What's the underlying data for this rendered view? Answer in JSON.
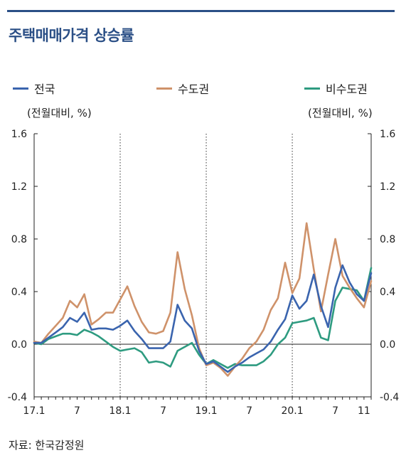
{
  "title": "주택매매가격 상승률",
  "source": "자료: 한국감정원",
  "colors": {
    "title": "#2b4f86",
    "rule": "#2b4f86"
  },
  "chart_data": {
    "type": "line",
    "unit_left": "(전월대비, %)",
    "unit_right": "(전월대비, %)",
    "ylim": [
      -0.4,
      1.6
    ],
    "yticks": [
      "1.6",
      "1.2",
      "0.8",
      "0.4",
      "0.0",
      "-0.4"
    ],
    "ytick_values": [
      1.6,
      1.2,
      0.8,
      0.4,
      0.0,
      -0.4
    ],
    "x_tick_labels": [
      {
        "label": "17.1",
        "index": 0
      },
      {
        "label": "7",
        "index": 6
      },
      {
        "label": "18.1",
        "index": 12
      },
      {
        "label": "7",
        "index": 18
      },
      {
        "label": "19.1",
        "index": 24
      },
      {
        "label": "7",
        "index": 30
      },
      {
        "label": "20.1",
        "index": 36
      },
      {
        "label": "7",
        "index": 42
      },
      {
        "label": "11",
        "index": 46
      }
    ],
    "vertical_dotted_lines_at_index": [
      12,
      24,
      36
    ],
    "series": [
      {
        "name": "전국",
        "color": "#3a64ae",
        "values": [
          0.01,
          0.01,
          0.05,
          0.09,
          0.13,
          0.2,
          0.17,
          0.24,
          0.11,
          0.12,
          0.12,
          0.11,
          0.14,
          0.18,
          0.1,
          0.04,
          -0.03,
          -0.03,
          -0.03,
          0.02,
          0.3,
          0.18,
          0.12,
          -0.05,
          -0.15,
          -0.13,
          -0.17,
          -0.21,
          -0.17,
          -0.14,
          -0.1,
          -0.07,
          -0.04,
          0.02,
          0.11,
          0.19,
          0.37,
          0.27,
          0.33,
          0.53,
          0.29,
          0.13,
          0.43,
          0.6,
          0.47,
          0.38,
          0.33,
          0.54
        ]
      },
      {
        "name": "수도권",
        "color": "#cf926a",
        "values": [
          0.02,
          0.01,
          0.08,
          0.14,
          0.2,
          0.33,
          0.28,
          0.38,
          0.15,
          0.19,
          0.24,
          0.24,
          0.34,
          0.44,
          0.29,
          0.17,
          0.09,
          0.08,
          0.1,
          0.24,
          0.7,
          0.42,
          0.22,
          -0.03,
          -0.16,
          -0.14,
          -0.18,
          -0.24,
          -0.17,
          -0.11,
          -0.03,
          0.02,
          0.11,
          0.26,
          0.35,
          0.62,
          0.39,
          0.5,
          0.92,
          0.57,
          0.25,
          0.53,
          0.8,
          0.52,
          0.43,
          0.35,
          0.28,
          0.48
        ]
      },
      {
        "name": "비수도권",
        "color": "#2e9b80",
        "values": [
          0.01,
          0.0,
          0.04,
          0.06,
          0.08,
          0.08,
          0.07,
          0.11,
          0.09,
          0.06,
          0.02,
          -0.02,
          -0.05,
          -0.04,
          -0.03,
          -0.06,
          -0.14,
          -0.13,
          -0.14,
          -0.17,
          -0.05,
          -0.02,
          0.01,
          -0.08,
          -0.15,
          -0.12,
          -0.15,
          -0.18,
          -0.15,
          -0.16,
          -0.16,
          -0.16,
          -0.13,
          -0.08,
          0.0,
          0.05,
          0.16,
          0.17,
          0.18,
          0.2,
          0.05,
          0.03,
          0.33,
          0.43,
          0.42,
          0.41,
          0.33,
          0.58
        ]
      }
    ]
  }
}
